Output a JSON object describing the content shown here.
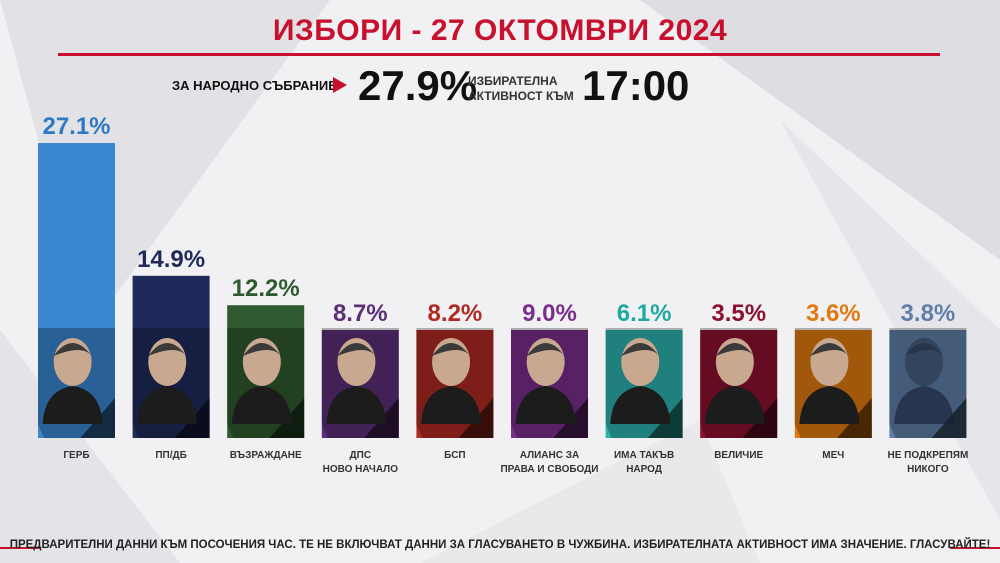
{
  "header": {
    "title": "ИЗБОРИ - 27 ОКТОМВРИ 2024",
    "subtitle": "ЗА НАРОДНО СЪБРАНИЕ",
    "turnout_value": "27.9%",
    "turnout_label_line1": "ИЗБИРАТЕЛНА",
    "turnout_label_line2": "АКТИВНОСТ КЪМ",
    "time": "17:00"
  },
  "footnote": "ПРЕДВАРИТЕЛНИ ДАННИ КЪМ ПОСОЧЕНИЯ ЧАС. ТЕ НЕ ВКЛЮЧВАТ ДАННИ ЗА ГЛАСУВАНЕТО В ЧУЖБИНА.  ИЗБИРАТЕЛНАТА АКТИВНОСТ ИМА ЗНАЧЕНИЕ. ГЛАСУВАЙТЕ!",
  "colors": {
    "accent": "#c8102e"
  },
  "chart_data": {
    "type": "bar",
    "unit": "%",
    "categories": [
      [
        "ГЕРБ"
      ],
      [
        "ПП/ДБ"
      ],
      [
        "ВЪЗРАЖДАНЕ"
      ],
      [
        "ДПС",
        "НОВО НАЧАЛО"
      ],
      [
        "БСП"
      ],
      [
        "АЛИАНС ЗА",
        "ПРАВА И СВОБОДИ"
      ],
      [
        "ИМА ТАКЪВ",
        "НАРОД"
      ],
      [
        "ВЕЛИЧИЕ"
      ],
      [
        "МЕЧ"
      ],
      [
        "НЕ ПОДКРЕПЯМ",
        "НИКОГО"
      ]
    ],
    "values": [
      27.1,
      14.9,
      12.2,
      8.7,
      8.2,
      9.0,
      6.1,
      3.5,
      3.6,
      3.8
    ],
    "value_labels": [
      "27.1%",
      "14.9%",
      "12.2%",
      "8.7%",
      "8.2%",
      "9.0%",
      "6.1%",
      "3.5%",
      "3.6%",
      "3.8%"
    ],
    "colors": [
      "#3a86cf",
      "#1f2a5a",
      "#2f5a2f",
      "#5b2f78",
      "#b02a22",
      "#7a2f8c",
      "#2bb2ad",
      "#8c1030",
      "#e07a10",
      "#5f7fa8"
    ],
    "label_colors": [
      "#2c79c4",
      "#1f2a5a",
      "#2f5a2f",
      "#5b2f78",
      "#b02a22",
      "#7a2f8c",
      "#1fa7a1",
      "#8c1030",
      "#e07a10",
      "#5f7fa8"
    ],
    "icon": "portrait-icon",
    "last_icon": "anonymous-silhouette-icon"
  }
}
